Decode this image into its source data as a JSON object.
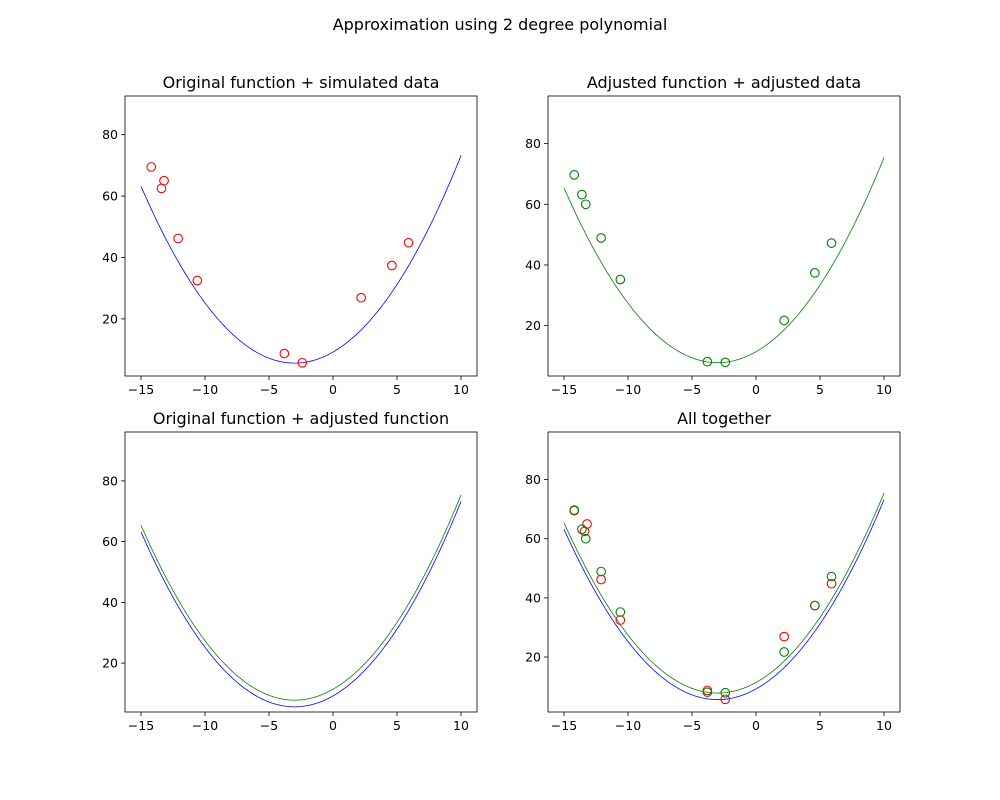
{
  "figure": {
    "suptitle": "Approximation using 2 degree polynomial"
  },
  "colors": {
    "original": "#0000ff",
    "adjusted": "#008000",
    "simulated_points": "#ff0000",
    "adjusted_points": "#008000"
  },
  "functions": {
    "original": {
      "a": 0.4,
      "b": 2.4,
      "c": 9.2,
      "x_range": [
        -15,
        10
      ]
    },
    "adjusted": {
      "a": 0.4,
      "b": 2.4,
      "c": 11.4,
      "x_range": [
        -15,
        10
      ]
    }
  },
  "chart_data": [
    {
      "type": "scatter",
      "title": "Original function + simulated data",
      "xlabel": "",
      "ylabel": "",
      "xlim": [
        -16.25,
        11.25
      ],
      "ylim": [
        1.4,
        92.6
      ],
      "xticks": [
        -15,
        -10,
        -5,
        0,
        5,
        10
      ],
      "yticks": [
        20,
        40,
        60,
        80
      ],
      "grid": false,
      "lines": [
        "original"
      ],
      "series": [
        {
          "ref": "simulated_points",
          "x": [
            -14.2,
            -13.4,
            -13.2,
            -12.1,
            -10.6,
            -3.8,
            -2.4,
            2.2,
            4.6,
            5.9
          ],
          "y": [
            69.5,
            62.5,
            65.0,
            46.2,
            32.5,
            8.7,
            5.7,
            26.9,
            37.4,
            44.8
          ]
        }
      ]
    },
    {
      "type": "scatter",
      "title": "Adjusted function + adjusted data",
      "xlabel": "",
      "ylabel": "",
      "xlim": [
        -16.25,
        11.25
      ],
      "ylim": [
        3.4,
        95.7
      ],
      "xticks": [
        -15,
        -10,
        -5,
        0,
        5,
        10
      ],
      "yticks": [
        20,
        40,
        60,
        80
      ],
      "grid": false,
      "lines": [
        "adjusted"
      ],
      "series": [
        {
          "ref": "adjusted_points",
          "x": [
            -14.2,
            -13.6,
            -13.3,
            -12.1,
            -10.6,
            -3.8,
            -2.4,
            2.2,
            4.6,
            5.9
          ],
          "y": [
            69.7,
            63.2,
            60.0,
            48.9,
            35.2,
            8.1,
            7.9,
            21.7,
            37.4,
            47.2
          ]
        }
      ]
    },
    {
      "type": "line",
      "title": "Original function + adjusted function",
      "xlabel": "",
      "ylabel": "",
      "xlim": [
        -16.25,
        11.25
      ],
      "ylim": [
        3.9,
        96.1
      ],
      "xticks": [
        -15,
        -10,
        -5,
        0,
        5,
        10
      ],
      "yticks": [
        20,
        40,
        60,
        80
      ],
      "grid": false,
      "lines": [
        "original",
        "adjusted"
      ],
      "series": []
    },
    {
      "type": "scatter",
      "title": "All together",
      "xlabel": "",
      "ylabel": "",
      "xlim": [
        -16.25,
        11.25
      ],
      "ylim": [
        1.4,
        96.1
      ],
      "xticks": [
        -15,
        -10,
        -5,
        0,
        5,
        10
      ],
      "yticks": [
        20,
        40,
        60,
        80
      ],
      "grid": false,
      "lines": [
        "original",
        "adjusted"
      ],
      "series": [
        {
          "ref": "simulated_points",
          "x": [
            -14.2,
            -13.4,
            -13.2,
            -12.1,
            -10.6,
            -3.8,
            -2.4,
            2.2,
            4.6,
            5.9
          ],
          "y": [
            69.5,
            62.5,
            65.0,
            46.2,
            32.5,
            8.7,
            5.7,
            26.9,
            37.4,
            44.8
          ]
        },
        {
          "ref": "adjusted_points",
          "x": [
            -14.2,
            -13.6,
            -13.3,
            -12.1,
            -10.6,
            -3.8,
            -2.4,
            2.2,
            4.6,
            5.9
          ],
          "y": [
            69.7,
            63.2,
            60.0,
            48.9,
            35.2,
            8.1,
            7.9,
            21.7,
            37.4,
            47.2
          ]
        }
      ]
    }
  ]
}
